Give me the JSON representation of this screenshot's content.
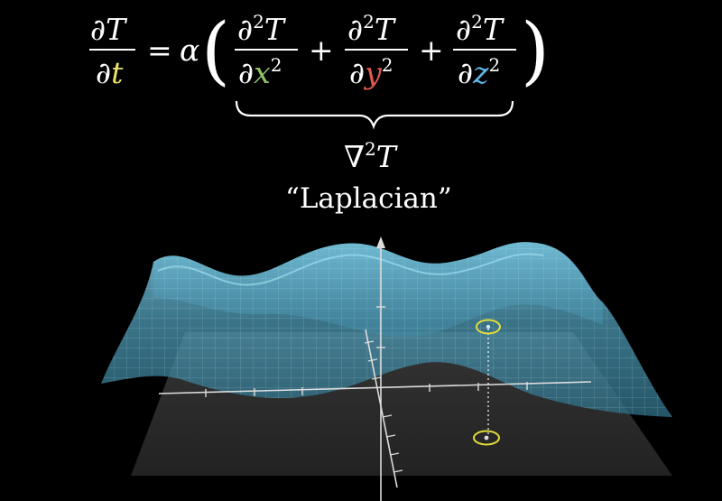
{
  "equation": {
    "partial": "∂",
    "T": "T",
    "t": "t",
    "equals": "=",
    "alpha": "α",
    "open_paren": "(",
    "close_paren": ")",
    "plus": "+",
    "two": "2",
    "x": "x",
    "y": "y",
    "z": "z",
    "nabla": "∇",
    "laplacian_label": "“Laplacian”"
  },
  "colors": {
    "t": "#e9e36b",
    "x": "#8fc46b",
    "y": "#e05a4f",
    "z": "#5fb6e6",
    "surface": "#5fb0cc",
    "marker": "#e3dc3a"
  }
}
